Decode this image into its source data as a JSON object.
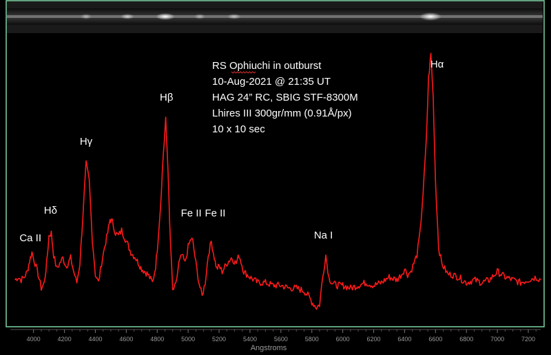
{
  "chart_data": {
    "type": "line",
    "title_lines": [
      "RS Ophiuchi in outburst",
      "10-Aug-2021 @ 21:35 UT",
      "HAG 24” RC, SBIG STF-8300M",
      "Lhires III 300gr/mm (0.91Å/px)",
      "10 x 10 sec"
    ],
    "xlabel": "Angstroms",
    "ylabel": "",
    "xlim": [
      3850,
      7280
    ],
    "ylim": [
      0,
      1.0
    ],
    "x_ticks": [
      "4000",
      "4200",
      "4400",
      "4600",
      "4800",
      "5000",
      "5200",
      "5400",
      "5600",
      "5800",
      "6000",
      "6200",
      "6400",
      "6600",
      "6800",
      "7000",
      "7200"
    ],
    "grid": false,
    "line_color": "#ff1a1a",
    "frame_color": "#7ed6a6",
    "series": [
      {
        "x": [
          3880,
          3900,
          3920,
          3940,
          3960,
          3975,
          3990,
          4010,
          4030,
          4050,
          4070,
          4085,
          4100,
          4115,
          4130,
          4150,
          4170,
          4190,
          4210,
          4225,
          4240,
          4260,
          4280,
          4300,
          4320,
          4340,
          4360,
          4380,
          4400,
          4420,
          4440,
          4460,
          4480,
          4495,
          4510,
          4530,
          4550,
          4570,
          4600,
          4630,
          4660,
          4700,
          4740,
          4770,
          4790,
          4800,
          4820,
          4840,
          4855,
          4870,
          4880,
          4900,
          4920,
          4940,
          4960,
          4980,
          5000,
          5020,
          5030,
          5050,
          5070,
          5090,
          5110,
          5130,
          5150,
          5170,
          5185,
          5200,
          5220,
          5250,
          5280,
          5310,
          5330,
          5360,
          5400,
          5450,
          5500,
          5550,
          5600,
          5650,
          5700,
          5750,
          5780,
          5800,
          5830,
          5850,
          5870,
          5890,
          5910,
          5930,
          5960,
          6000,
          6050,
          6100,
          6150,
          6200,
          6250,
          6300,
          6350,
          6380,
          6400,
          6420,
          6440,
          6460,
          6480,
          6500,
          6520,
          6540,
          6555,
          6570,
          6585,
          6600,
          6620,
          6640,
          6660,
          6680,
          6700,
          6750,
          6800,
          6850,
          6900,
          6950,
          7000,
          7050,
          7100,
          7150,
          7200,
          7250,
          7280
        ],
        "y": [
          0.16,
          0.17,
          0.16,
          0.17,
          0.19,
          0.23,
          0.26,
          0.22,
          0.18,
          0.13,
          0.15,
          0.22,
          0.32,
          0.33,
          0.25,
          0.2,
          0.22,
          0.24,
          0.21,
          0.22,
          0.24,
          0.19,
          0.15,
          0.22,
          0.4,
          0.58,
          0.52,
          0.31,
          0.18,
          0.15,
          0.22,
          0.28,
          0.33,
          0.38,
          0.37,
          0.33,
          0.32,
          0.34,
          0.3,
          0.26,
          0.24,
          0.2,
          0.18,
          0.15,
          0.21,
          0.27,
          0.42,
          0.62,
          0.74,
          0.56,
          0.37,
          0.12,
          0.14,
          0.22,
          0.25,
          0.22,
          0.28,
          0.31,
          0.3,
          0.22,
          0.15,
          0.1,
          0.15,
          0.25,
          0.3,
          0.24,
          0.2,
          0.21,
          0.19,
          0.22,
          0.24,
          0.22,
          0.25,
          0.19,
          0.17,
          0.15,
          0.15,
          0.14,
          0.14,
          0.13,
          0.13,
          0.12,
          0.1,
          0.08,
          0.06,
          0.07,
          0.17,
          0.25,
          0.17,
          0.15,
          0.14,
          0.14,
          0.13,
          0.14,
          0.15,
          0.14,
          0.15,
          0.17,
          0.16,
          0.18,
          0.2,
          0.18,
          0.19,
          0.22,
          0.25,
          0.33,
          0.48,
          0.66,
          0.89,
          0.98,
          0.82,
          0.52,
          0.28,
          0.22,
          0.2,
          0.18,
          0.18,
          0.17,
          0.15,
          0.16,
          0.15,
          0.16,
          0.19,
          0.17,
          0.16,
          0.15,
          0.16,
          0.17,
          0.16
        ]
      }
    ],
    "annotations": [
      {
        "text": "Ca II",
        "x": 3980,
        "y": 0.3
      },
      {
        "text": "Hδ",
        "x": 4110,
        "y": 0.4
      },
      {
        "text": "Hγ",
        "x": 4340,
        "y": 0.65
      },
      {
        "text": "Hβ",
        "x": 4860,
        "y": 0.81
      },
      {
        "text": "Fe II",
        "x": 5020,
        "y": 0.39
      },
      {
        "text": "Fe II",
        "x": 5175,
        "y": 0.39
      },
      {
        "text": "Na I",
        "x": 5875,
        "y": 0.31
      },
      {
        "text": "Hα",
        "x": 6610,
        "y": 0.93
      }
    ]
  }
}
